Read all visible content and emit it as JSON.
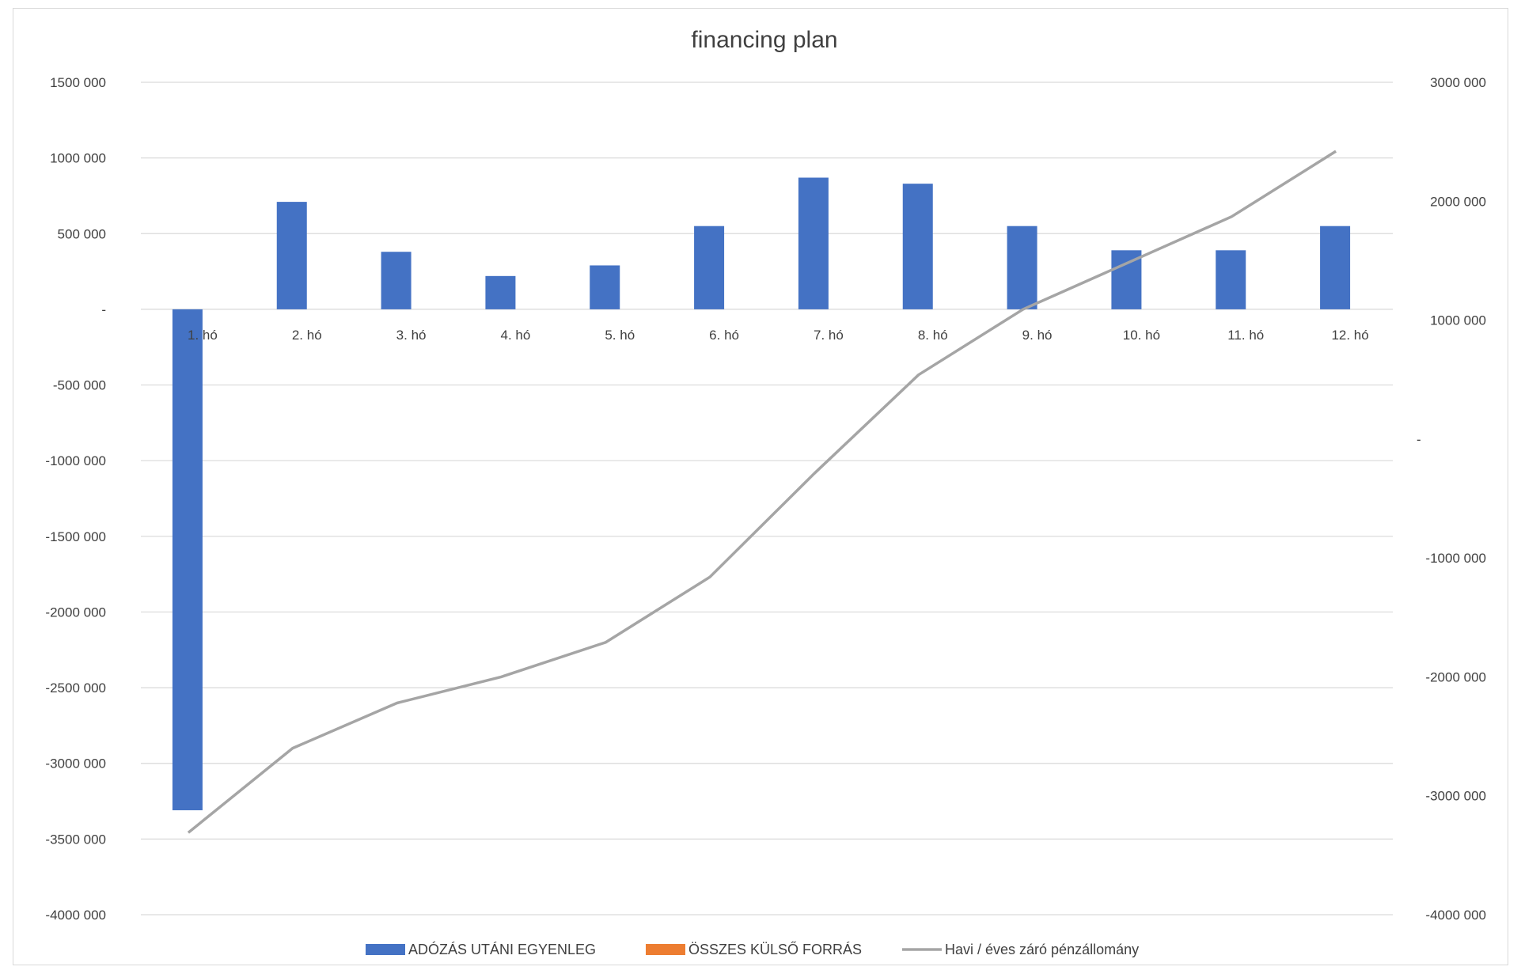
{
  "chart_data": {
    "type": "bar",
    "title": "financing plan",
    "categories": [
      "1. hó",
      "2. hó",
      "3. hó",
      "4. hó",
      "5. hó",
      "6. hó",
      "7. hó",
      "8. hó",
      "9. hó",
      "10. hó",
      "11. hó",
      "12. hó"
    ],
    "series": [
      {
        "name": "ADÓZÁS UTÁNI EGYENLEG",
        "type": "bar",
        "axis": "left",
        "color": "#4472c4",
        "values": [
          -3310000,
          710000,
          380000,
          220000,
          290000,
          550000,
          870000,
          830000,
          550000,
          390000,
          390000,
          550000
        ]
      },
      {
        "name": "ÖSSZES KÜLSŐ FORRÁS",
        "type": "bar",
        "axis": "left",
        "color": "#ed7d31",
        "values": [
          0,
          0,
          0,
          0,
          0,
          0,
          0,
          0,
          0,
          0,
          0,
          0
        ]
      },
      {
        "name": "Havi / éves záró pénzállomány",
        "type": "line",
        "axis": "right",
        "color": "#a5a5a5",
        "values": [
          -3310000,
          -2600000,
          -2220000,
          -2000000,
          -1710000,
          -1160000,
          -290000,
          540000,
          1090000,
          1480000,
          1870000,
          2420000
        ]
      }
    ],
    "y_left": {
      "ylim": [
        -4000000,
        1500000
      ],
      "ticks": [
        1500000,
        1000000,
        500000,
        0,
        -500000,
        -1000000,
        -1500000,
        -2000000,
        -2500000,
        -3000000,
        -3500000,
        -4000000
      ],
      "tick_labels": [
        "1500 000",
        "1000 000",
        "500 000",
        "-",
        "-500 000",
        "-1000 000",
        "-1500 000",
        "-2000 000",
        "-2500 000",
        "-3000 000",
        "-3500 000",
        "-4000 000"
      ]
    },
    "y_right": {
      "ylim": [
        -4000000,
        3000000
      ],
      "ticks": [
        3000000,
        2000000,
        1000000,
        0,
        -1000000,
        -2000000,
        -3000000,
        -4000000
      ],
      "tick_labels": [
        "3000 000",
        "2000 000",
        "1000 000",
        "-",
        "-1000 000",
        "-2000 000",
        "-3000 000",
        "-4000 000"
      ]
    },
    "grid": true,
    "legend_position": "bottom"
  }
}
